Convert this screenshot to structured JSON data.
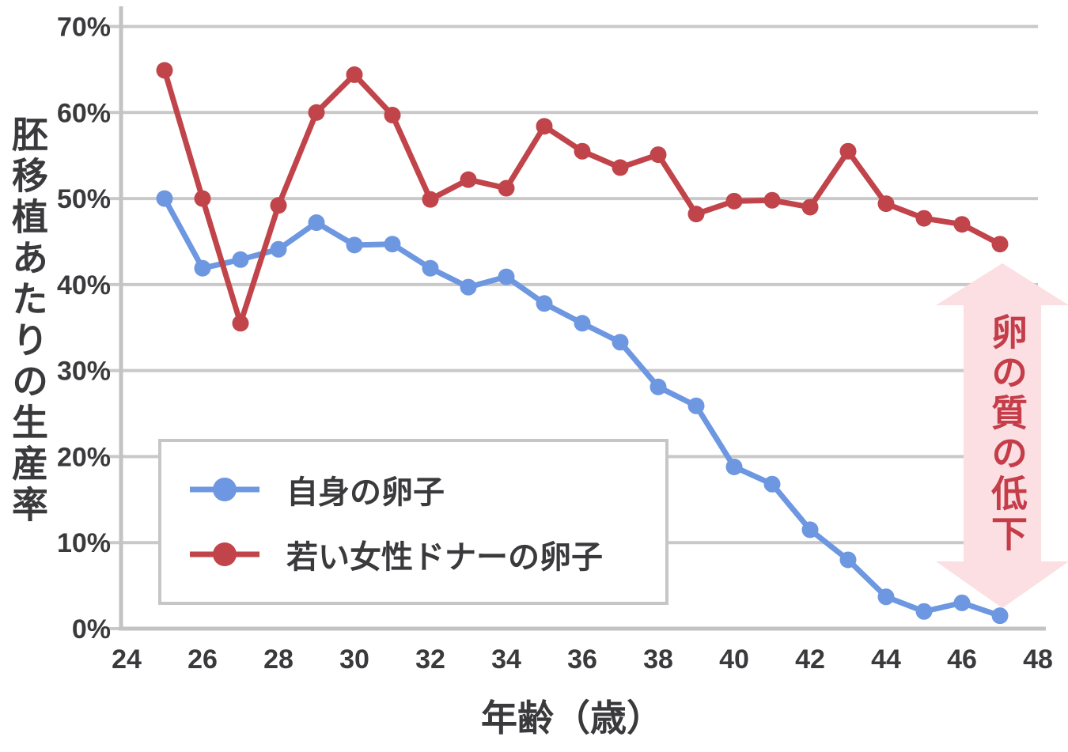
{
  "chart_data": {
    "type": "line",
    "title": "",
    "xlabel": "年齢（歳）",
    "ylabel": "胚移植あたりの生産率",
    "xlim": [
      24,
      48
    ],
    "ylim": [
      0,
      70
    ],
    "grid": true,
    "legend_position": "lower-left",
    "y_unit": "%",
    "x": [
      25,
      26,
      27,
      28,
      29,
      30,
      31,
      32,
      33,
      34,
      35,
      36,
      37,
      38,
      39,
      40,
      41,
      42,
      43,
      44,
      45,
      46,
      47
    ],
    "x_ticks": [
      "24",
      "26",
      "28",
      "30",
      "32",
      "34",
      "36",
      "38",
      "40",
      "42",
      "44",
      "46",
      "48"
    ],
    "y_ticks": [
      {
        "value": 0,
        "label": "0%"
      },
      {
        "value": 10,
        "label": "10%"
      },
      {
        "value": 20,
        "label": "20%"
      },
      {
        "value": 30,
        "label": "30%"
      },
      {
        "value": 40,
        "label": "40%"
      },
      {
        "value": 50,
        "label": "50%"
      },
      {
        "value": 60,
        "label": "60%"
      },
      {
        "value": 70,
        "label": "70%"
      }
    ],
    "series": [
      {
        "id": "own-eggs",
        "name": "自身の卵子",
        "color": "#6d97e0",
        "values": [
          50.0,
          41.9,
          42.9,
          44.1,
          47.2,
          44.6,
          44.7,
          41.9,
          39.7,
          40.9,
          37.8,
          35.5,
          33.3,
          28.1,
          25.9,
          18.8,
          16.8,
          11.5,
          8.0,
          3.7,
          2.0,
          3.0,
          1.5
        ]
      },
      {
        "id": "donor-eggs",
        "name": "若い女性ドナーの卵子",
        "color": "#c0444a",
        "values": [
          64.9,
          50.0,
          35.5,
          49.2,
          60.0,
          64.4,
          59.7,
          49.9,
          52.2,
          51.2,
          58.4,
          55.5,
          53.6,
          55.1,
          48.2,
          49.7,
          49.8,
          49.0,
          55.5,
          49.4,
          47.7,
          47.0,
          44.7
        ]
      }
    ]
  },
  "annotation": {
    "text": "卵の質の低下",
    "shape": "double-headed-vertical-arrow",
    "fill": "#fbdfe2",
    "text_color": "#c43d49"
  },
  "colors": {
    "background": "#ffffff",
    "gridline": "#c9c9c9",
    "axis": "#c3c3c3",
    "label_text": "#3a3a3c",
    "legend_border": "#c6c6c6"
  }
}
